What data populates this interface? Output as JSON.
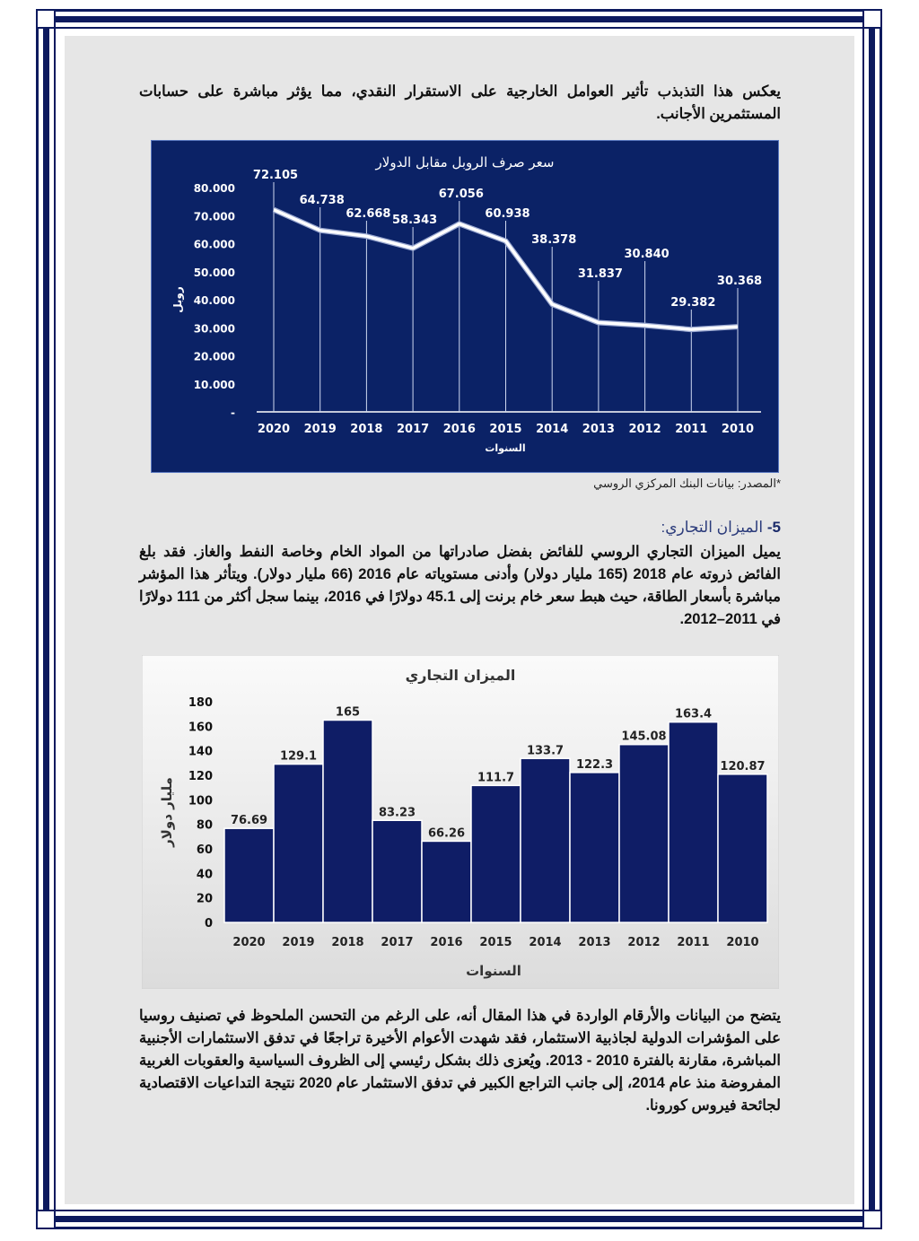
{
  "paragraphs": {
    "intro": "يعكس هذا التذبذب تأثير العوامل الخارجية على الاستقرار النقدي، مما يؤثر مباشرة على حسابات المستثمرين الأجانب.",
    "source": "*المصدر: بيانات البنك المركزي الروسي",
    "section_number": "5-",
    "section_title": " الميزان التجاري:",
    "trade": "يميل الميزان التجاري الروسي للفائض بفضل صادراتها من المواد الخام وخاصة النفط والغاز. فقد بلغ الفائض ذروته عام 2018 (165 مليار دولار) وأدنى مستوياته عام 2016 (66 مليار دولار). ويتأثر هذا المؤشر مباشرة بأسعار الطاقة، حيث هبط سعر خام برنت إلى 45.1 دولارًا في 2016، بينما سجل أكثر من 111 دولارًا في 2011–2012.",
    "conclusion": "يتضح من البيانات والأرقام الواردة في هذا المقال أنه، على الرغم من التحسن الملحوظ في تصنيف روسيا على المؤشرات الدولية لجاذبية الاستثمار، فقد شهدت الأعوام الأخيرة تراجعًا في تدفق الاستثمارات الأجنبية المباشرة، مقارنة بالفترة 2010 - 2013. ويُعزى ذلك بشكل رئيسي إلى الظروف السياسية والعقوبات الغربية المفروضة منذ عام 2014، إلى جانب التراجع الكبير في تدفق الاستثمار عام 2020 نتيجة التداعيات الاقتصادية لجائحة فيروس كورونا."
  },
  "colors": {
    "frame": "#0d1a5e",
    "chart1_bg": "#0b2266",
    "bar": "#0f1d66",
    "line": "#ffffff"
  },
  "chart_data": [
    {
      "type": "line",
      "title": "سعر صرف الروبل مقابل الدولار",
      "xlabel": "السنوات",
      "ylabel": "روبل",
      "categories": [
        "2020",
        "2019",
        "2018",
        "2017",
        "2016",
        "2015",
        "2014",
        "2013",
        "2012",
        "2011",
        "2010"
      ],
      "values": [
        72.105,
        64.738,
        62.668,
        58.343,
        67.056,
        60.938,
        38.378,
        31.837,
        30.84,
        29.382,
        30.368
      ],
      "labels": [
        "72.105",
        "64.738",
        "62.668",
        "58.343",
        "67.056",
        "60.938",
        "38.378",
        "31.837",
        "30.840",
        "29.382",
        "30.368"
      ],
      "yticks": [
        "-",
        "10.000",
        "20.000",
        "30.000",
        "40.000",
        "50.000",
        "60.000",
        "70.000",
        "80.000"
      ],
      "ylim": [
        0,
        80
      ],
      "grid": false
    },
    {
      "type": "bar",
      "title": "الميزان التجاري",
      "xlabel": "السنوات",
      "ylabel": "مليار دولار",
      "categories": [
        "2020",
        "2019",
        "2018",
        "2017",
        "2016",
        "2015",
        "2014",
        "2013",
        "2012",
        "2011",
        "2010"
      ],
      "values": [
        76.69,
        129.1,
        165,
        83.23,
        66.26,
        111.7,
        133.7,
        122.3,
        145.08,
        163.4,
        120.87
      ],
      "labels": [
        "76.69",
        "129.1",
        "165",
        "83.23",
        "66.26",
        "111.7",
        "133.7",
        "122.3",
        "145.08",
        "163.4",
        "120.87"
      ],
      "yticks": [
        "0",
        "20",
        "40",
        "60",
        "80",
        "100",
        "120",
        "140",
        "160",
        "180"
      ],
      "ylim": [
        0,
        180
      ],
      "grid": false
    }
  ]
}
